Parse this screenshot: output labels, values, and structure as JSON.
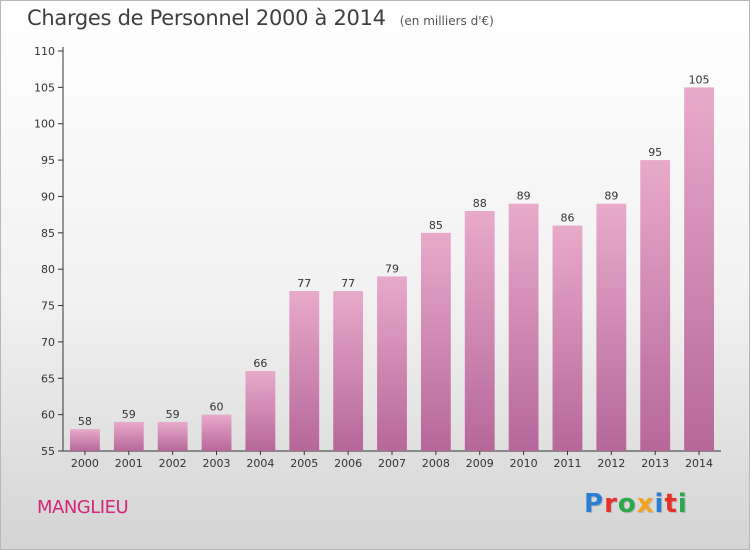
{
  "header": {
    "title": "Charges de Personnel 2000 à 2014",
    "subtitle": "(en milliers d'€)"
  },
  "footer": {
    "commune": "MANGLIEU"
  },
  "logo": {
    "text": "Proxiti",
    "colors": [
      "#2a7fd4",
      "#e8302a",
      "#2aa84a",
      "#f2a21b",
      "#2a7fd4",
      "#e8302a",
      "#2aa84a"
    ]
  },
  "chart_data": {
    "type": "bar",
    "title": "Charges de Personnel 2000 à 2014",
    "subtitle": "(en milliers d'€)",
    "xlabel": "",
    "ylabel": "",
    "categories": [
      "2000",
      "2001",
      "2002",
      "2003",
      "2004",
      "2005",
      "2006",
      "2007",
      "2008",
      "2009",
      "2010",
      "2011",
      "2012",
      "2013",
      "2014"
    ],
    "values": [
      58,
      59,
      59,
      60,
      66,
      77,
      77,
      79,
      85,
      88,
      89,
      86,
      89,
      95,
      105
    ],
    "ylim": [
      55,
      110
    ],
    "yticks": [
      55,
      60,
      65,
      70,
      75,
      80,
      85,
      90,
      95,
      100,
      105,
      110
    ],
    "grid": false,
    "data_labels": true,
    "bar_color": "#d98bb8"
  }
}
